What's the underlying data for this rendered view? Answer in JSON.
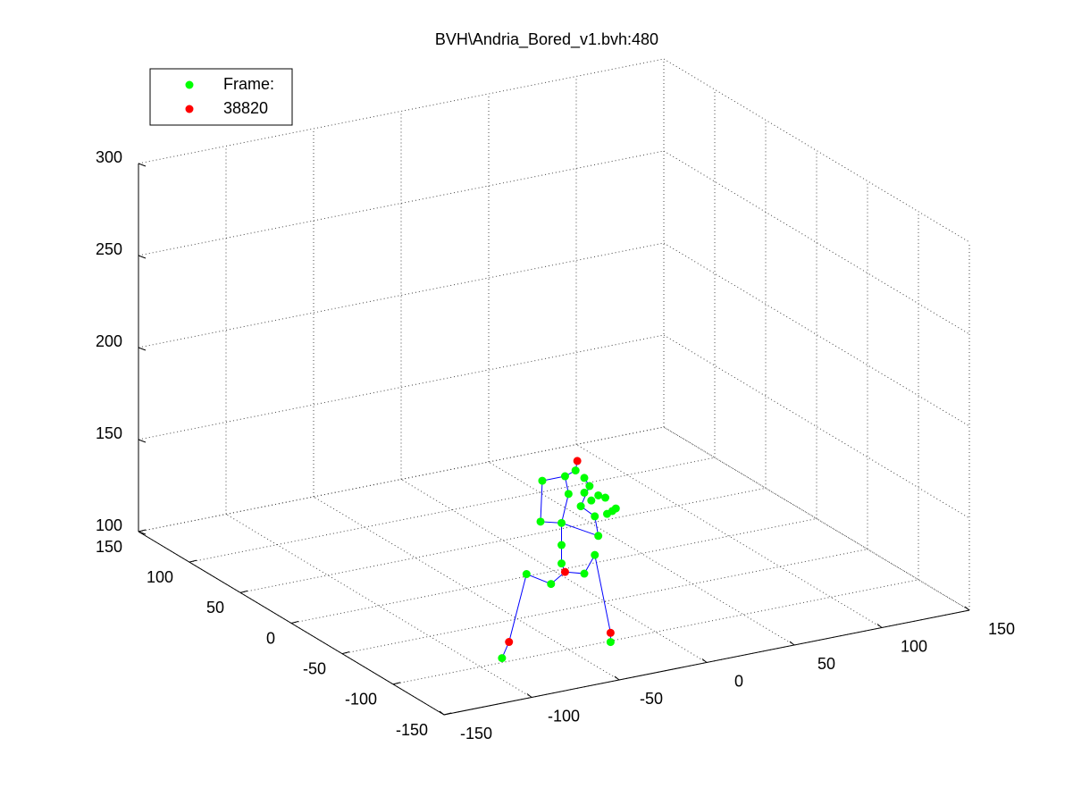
{
  "chart_data": {
    "type": "scatter3",
    "title": "BVH\\Andria_Bored_v1.bvh:480",
    "xlim": [
      -150,
      150
    ],
    "ylim": [
      -150,
      150
    ],
    "zlim": [
      100,
      300
    ],
    "xticks": [
      -150,
      -100,
      -50,
      0,
      50,
      100,
      150
    ],
    "yticks": [
      -150,
      -100,
      -50,
      0,
      50,
      100,
      150
    ],
    "zticks": [
      100,
      150,
      200,
      250,
      300
    ],
    "grid": true,
    "legend": "upper left",
    "series": [
      {
        "name": "Frame:",
        "color": "#00ff00",
        "x": [
          -82,
          -20,
          -68,
          -54,
          -35,
          -29,
          -48,
          -48,
          -48,
          -60,
          -44,
          -59,
          -46,
          -40,
          -35,
          -37,
          -27,
          -29,
          -32,
          -27,
          -23,
          -19,
          -17,
          -22,
          -35,
          -31
        ],
        "y": [
          -90,
          -90,
          -90,
          -90,
          -90,
          -90,
          -90,
          -90,
          -90,
          -90,
          -90,
          -90,
          -90,
          -90,
          -90,
          -90,
          -90,
          -90,
          -90,
          -90,
          -90,
          -90,
          -90,
          -90,
          -90,
          -90
        ],
        "z": [
          98,
          95,
          141,
          133,
          135,
          144,
          143,
          153,
          165,
          168,
          180,
          190,
          190,
          192,
          187,
          172,
          154,
          165,
          182,
          176,
          174,
          166,
          167,
          165,
          179,
          174
        ]
      },
      {
        "name": "38820",
        "color": "#ff0000",
        "x": [
          -39,
          -46,
          -78,
          -20
        ],
        "y": [
          -90,
          -90,
          -90,
          -90
        ],
        "z": [
          197,
          138,
          106,
          100
        ]
      }
    ],
    "bones": {
      "color": "#0000ff",
      "x": [
        -82,
        -78,
        -68,
        -54,
        -46,
        -35,
        -29,
        -20,
        -20,
        null,
        -46,
        -48,
        -48,
        -48,
        -44,
        -46,
        -40,
        -39,
        null,
        -48,
        -60,
        -59,
        -46,
        null,
        -48,
        -27,
        -29,
        -37,
        -32,
        -35
      ],
      "y": [
        -90,
        -90,
        -90,
        -90,
        -90,
        -90,
        -90,
        -90,
        -90,
        null,
        -90,
        -90,
        -90,
        -90,
        -90,
        -90,
        -90,
        -90,
        null,
        -90,
        -90,
        -90,
        -90,
        null,
        -90,
        -90,
        -90,
        -90,
        -90,
        -90
      ],
      "z": [
        98,
        106,
        141,
        133,
        138,
        135,
        144,
        100,
        95,
        null,
        138,
        143,
        153,
        165,
        180,
        190,
        192,
        197,
        null,
        165,
        168,
        190,
        190,
        null,
        165,
        154,
        165,
        172,
        182,
        187
      ]
    }
  }
}
